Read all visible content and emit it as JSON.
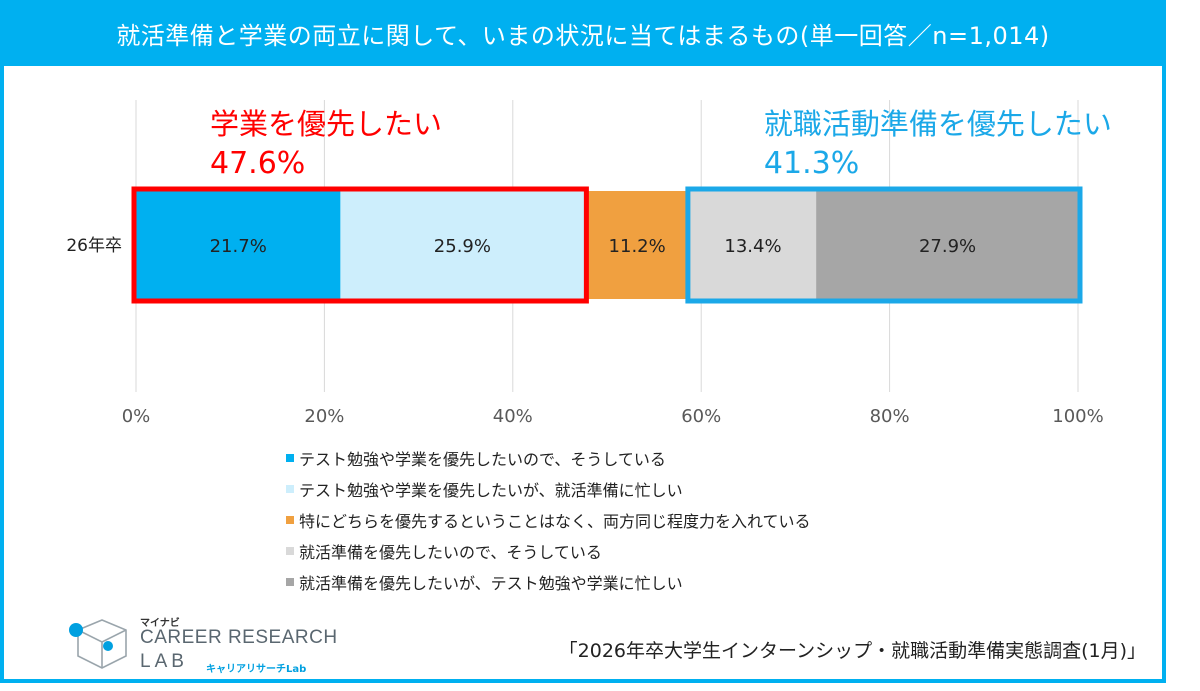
{
  "title": "就活準備と学業の両立に関して、いまの状況に当てはまるもの(単一回答／n=1,014)",
  "chart_data": {
    "type": "bar",
    "orientation": "horizontal",
    "stacked": true,
    "categories": [
      "26年卒"
    ],
    "xlim": [
      0,
      100
    ],
    "xticks": [
      "0%",
      "20%",
      "40%",
      "60%",
      "80%",
      "100%"
    ],
    "grid": "vertical",
    "series": [
      {
        "name": "テスト勉強や学業を優先したいので、そうしている",
        "values": [
          21.7
        ],
        "label": "21.7%",
        "color": "#00b0f0"
      },
      {
        "name": "テスト勉強や学業を優先したいが、就活準備に忙しい",
        "values": [
          25.9
        ],
        "label": "25.9%",
        "color": "#cdeefc"
      },
      {
        "name": "特にどちらを優先するということはなく、両方同じ程度力を入れている",
        "values": [
          11.2
        ],
        "label": "11.2%",
        "color": "#f0a040"
      },
      {
        "name": "就活準備を優先したいので、そうしている",
        "values": [
          13.4
        ],
        "label": "13.4%",
        "color": "#d9d9d9"
      },
      {
        "name": "就活準備を優先したいが、テスト勉強や学業に忙しい",
        "values": [
          27.9
        ],
        "label": "27.9%",
        "color": "#a6a6a6"
      }
    ],
    "annotations": [
      {
        "label": "学業を優先したい",
        "value": "47.6%",
        "color": "#ff0000",
        "from": 0,
        "to": 47.6
      },
      {
        "label": "就職活動準備を優先したい",
        "value": "41.3%",
        "color": "#1ba8e8",
        "from": 58.8,
        "to": 100
      }
    ]
  },
  "logo": {
    "tag": "マイナビ",
    "line1": "CAREER RESEARCH",
    "line2": "LAB",
    "sub": "キャリアリサーチLab"
  },
  "source": "「2026年卒大学生インターンシップ・就職活動準備実態調査(1月)」"
}
